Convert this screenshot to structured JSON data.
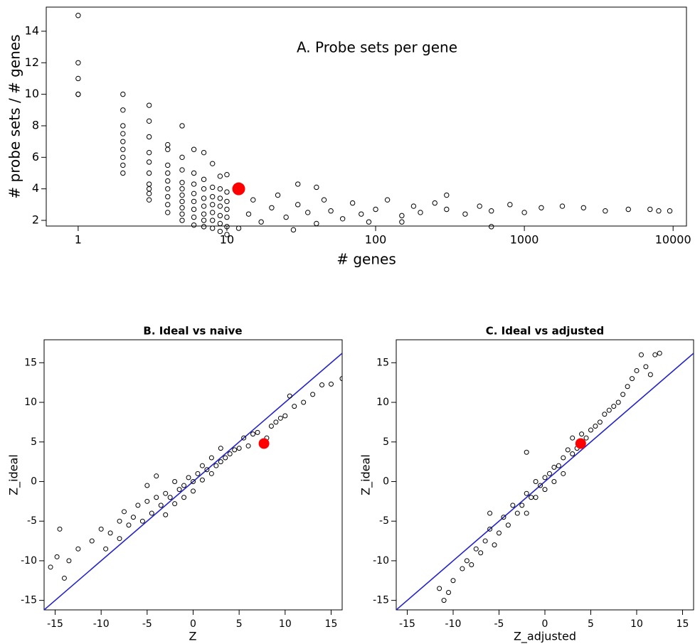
{
  "chart_data": [
    {
      "type": "scatter",
      "title": "A.   Probe sets per gene",
      "x_label": "# genes",
      "y_label": "# probe sets / # genes",
      "xscale": "log",
      "marker": "open",
      "xlim": [
        0.61,
        12300
      ],
      "xticks": [
        1,
        10,
        100,
        1000,
        10000
      ],
      "ylim": [
        1.64,
        15.53
      ],
      "yticks": [
        2,
        4,
        6,
        8,
        10,
        12,
        14
      ],
      "series": [
        {
          "color": "#000000",
          "marker": "open",
          "x": [
            1,
            1,
            1,
            1,
            1,
            2,
            2,
            2,
            2,
            2,
            2,
            2,
            2,
            2,
            3,
            3,
            3,
            3,
            3,
            3,
            3,
            3,
            3,
            3,
            4,
            4,
            4,
            4,
            4,
            4,
            4,
            4,
            4,
            5,
            5,
            5,
            5,
            5,
            5,
            5,
            5,
            5,
            5,
            6,
            6,
            6,
            6,
            6,
            6,
            6,
            6,
            7,
            7,
            7,
            7,
            7,
            7,
            7,
            7,
            8,
            8,
            8,
            8,
            8,
            8,
            8,
            9,
            9,
            9,
            9,
            9,
            9,
            9,
            10,
            10,
            10,
            10,
            10,
            10,
            10,
            12,
            14,
            15,
            17,
            20,
            22,
            25,
            28,
            30,
            35,
            40,
            45,
            50,
            60,
            70,
            80,
            90,
            100,
            120,
            150,
            180,
            200,
            250,
            300,
            400,
            500,
            600,
            800,
            1000,
            1300,
            1800,
            2500,
            3500,
            5000,
            7000,
            8000,
            9500,
            600,
            300,
            150,
            40,
            30
          ],
          "values": [
            10,
            10,
            11,
            12,
            15,
            5,
            5.5,
            6,
            6.5,
            7,
            7.5,
            8,
            9,
            10,
            3.3,
            3.7,
            4,
            4.3,
            5,
            5.7,
            6.3,
            7.3,
            8.3,
            9.3,
            2.5,
            3,
            3.5,
            4,
            4.5,
            5,
            5.5,
            6.5,
            6.8,
            2,
            2.4,
            2.8,
            3.2,
            3.6,
            4,
            4.4,
            5.2,
            6,
            8,
            1.7,
            2.2,
            2.7,
            3.2,
            3.7,
            4.3,
            5,
            6.5,
            1.6,
            2,
            2.4,
            2.9,
            3.4,
            4,
            4.6,
            6.3,
            1.5,
            2,
            2.5,
            3,
            3.5,
            4.1,
            5.6,
            1.3,
            1.8,
            2.3,
            2.9,
            3.4,
            4,
            4.8,
            1.1,
            1.6,
            2.2,
            2.7,
            3.2,
            3.8,
            4.9,
            1.5,
            2.4,
            3.3,
            1.9,
            2.8,
            3.6,
            2.2,
            1.4,
            3.0,
            2.5,
            1.8,
            3.3,
            2.6,
            2.1,
            3.1,
            2.4,
            1.9,
            2.7,
            3.3,
            2.3,
            2.9,
            2.5,
            3.1,
            2.7,
            2.4,
            2.9,
            2.6,
            3.0,
            2.5,
            2.8,
            2.9,
            2.8,
            2.6,
            2.7,
            2.7,
            2.6,
            2.6,
            1.6,
            3.6,
            1.9,
            4.1,
            4.3
          ]
        },
        {
          "color": "#ff0000",
          "marker": "filled",
          "x": [
            12
          ],
          "values": [
            4
          ]
        }
      ]
    },
    {
      "type": "scatter",
      "title": "B.   Ideal vs naive",
      "x_label": "Z",
      "y_label": "Z_ideal",
      "xscale": "linear",
      "reference_line_color": "#2222cc",
      "xlim": [
        -16.2,
        16.2
      ],
      "xticks": [
        -15,
        -10,
        -5,
        0,
        5,
        10,
        15
      ],
      "ylim": [
        -16.2,
        17.9
      ],
      "yticks": [
        -15,
        -10,
        -5,
        0,
        5,
        10,
        15
      ],
      "series": [
        {
          "color": "#000000",
          "marker": "open",
          "x": [
            -15.5,
            -14.8,
            -14,
            -13.5,
            -12.5,
            -11,
            -10,
            -9.5,
            -9,
            -8,
            -8,
            -7.5,
            -7,
            -6.5,
            -6,
            -5.5,
            -5,
            -5,
            -4.5,
            -4,
            -4,
            -3.5,
            -3,
            -3,
            -2.5,
            -2,
            -2,
            -1.5,
            -1,
            -1,
            -0.5,
            0,
            0,
            0.5,
            1,
            1,
            1.5,
            2,
            2,
            2.5,
            3,
            3,
            3.5,
            4,
            4.5,
            5,
            5.5,
            6,
            6.5,
            7,
            8,
            8.5,
            9,
            9.5,
            10,
            10.5,
            11,
            12,
            13,
            14,
            15,
            16.2,
            -14.5
          ],
          "values": [
            -10.8,
            -9.5,
            -12.2,
            -10,
            -8.5,
            -7.5,
            -6,
            -8.5,
            -6.5,
            -7.2,
            -5,
            -3.8,
            -5.5,
            -4.5,
            -3,
            -5,
            -2.5,
            -0.5,
            -4,
            -2,
            0.7,
            -3,
            -1.5,
            -4.2,
            -2,
            0,
            -2.8,
            -1,
            -0.5,
            -2,
            0.5,
            0,
            -1.2,
            1,
            0.2,
            2,
            1.5,
            1,
            3,
            2,
            2.5,
            4.2,
            3,
            3.5,
            4,
            4.2,
            5.5,
            4.5,
            6,
            6.2,
            5.5,
            7,
            7.5,
            8,
            8.3,
            10.8,
            9.5,
            10,
            11,
            12.2,
            12.3,
            13,
            -6
          ]
        },
        {
          "color": "#ff0000",
          "marker": "filled",
          "x": [
            7.7
          ],
          "values": [
            4.8
          ]
        }
      ]
    },
    {
      "type": "scatter",
      "title": "C.   Ideal vs adjusted",
      "x_label": "Z_adjusted",
      "y_label": "Z_ideal",
      "xscale": "linear",
      "reference_line_color": "#2222cc",
      "xlim": [
        -16.2,
        16.2
      ],
      "xticks": [
        -15,
        -10,
        -5,
        0,
        5,
        10,
        15
      ],
      "ylim": [
        -16.2,
        17.9
      ],
      "yticks": [
        -15,
        -10,
        -5,
        0,
        5,
        10,
        15
      ],
      "series": [
        {
          "color": "#000000",
          "marker": "open",
          "x": [
            -11.5,
            -11,
            -10.5,
            -10,
            -9,
            -8.5,
            -8,
            -7.5,
            -7,
            -6.5,
            -6,
            -5.5,
            -5,
            -4.5,
            -4,
            -3.5,
            -3,
            -2.5,
            -2,
            -2,
            -1.5,
            -1,
            -1,
            -0.5,
            0,
            0,
            0.5,
            1,
            1,
            1.5,
            2,
            2,
            2.5,
            3,
            3,
            3.5,
            4,
            4.5,
            5,
            5.5,
            6,
            6.5,
            7,
            7.5,
            8,
            8.5,
            9,
            9.5,
            10,
            11,
            11.5,
            12,
            12.5,
            10.5,
            -2,
            -6
          ],
          "values": [
            -13.5,
            -15,
            -14,
            -12.5,
            -11,
            -10,
            -10.5,
            -8.5,
            -9,
            -7.5,
            -6,
            -8,
            -6.5,
            -4.5,
            -5.5,
            -3,
            -4,
            -3,
            -1.5,
            -4,
            -2,
            0,
            -2,
            -0.5,
            0.5,
            -1,
            1,
            1.8,
            0,
            2,
            3,
            1,
            4,
            3.5,
            5.5,
            4.2,
            6,
            5.5,
            6.5,
            7,
            7.5,
            8.5,
            9,
            9.5,
            10,
            11,
            12,
            13,
            14,
            14.5,
            13.5,
            16,
            16.2,
            16,
            3.7,
            -4
          ]
        },
        {
          "color": "#ff0000",
          "marker": "filled",
          "x": [
            3.9
          ],
          "values": [
            4.8
          ]
        }
      ]
    }
  ]
}
